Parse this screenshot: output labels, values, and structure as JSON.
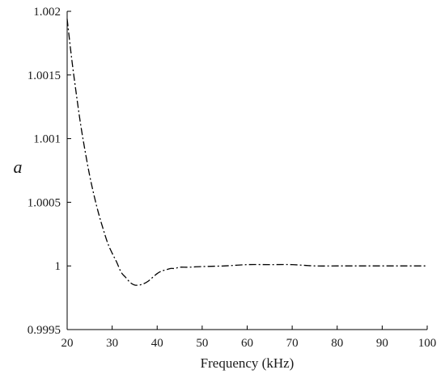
{
  "chart_data": {
    "type": "line",
    "title": "",
    "xlabel": "Frequency (kHz)",
    "ylabel": "a",
    "xlim": [
      20,
      100
    ],
    "ylim": [
      0.9995,
      1.002
    ],
    "x_ticks": [
      20,
      30,
      40,
      50,
      60,
      70,
      80,
      90,
      100
    ],
    "x_tick_labels": [
      "20",
      "30",
      "40",
      "50",
      "60",
      "70",
      "80",
      "90",
      "100"
    ],
    "y_ticks": [
      0.9995,
      1.0,
      1.0005,
      1.001,
      1.0015,
      1.002
    ],
    "y_tick_labels": [
      "0.9995",
      "1",
      "1.0005",
      "1.001",
      "1.0015",
      "1.002"
    ],
    "grid": false,
    "line_style": "dash-dot",
    "line_color": "#000000",
    "series": [
      {
        "x": [
          20,
          21,
          22,
          23,
          24,
          25,
          26,
          27,
          28,
          29,
          30,
          31,
          32,
          33,
          34,
          35,
          36,
          37,
          38,
          39,
          40,
          41,
          42,
          43,
          44,
          45,
          47,
          50,
          55,
          60,
          65,
          70,
          75,
          80,
          85,
          90,
          95,
          100
        ],
        "y": [
          1.00194,
          1.00163,
          1.00136,
          1.00111,
          1.0009,
          1.00071,
          1.00055,
          1.00041,
          1.00029,
          1.00018,
          1.0001,
          1.00003,
          0.99995,
          0.99991,
          0.99987,
          0.99985,
          0.99985,
          0.99986,
          0.99988,
          0.99991,
          0.99994,
          0.99996,
          0.99997,
          0.99998,
          0.99998,
          0.99999,
          0.99999,
          0.999995,
          1.0,
          1.00001,
          1.00001,
          1.00001,
          1.0,
          1.0,
          1.0,
          1.0,
          1.0,
          1.0
        ]
      }
    ]
  }
}
